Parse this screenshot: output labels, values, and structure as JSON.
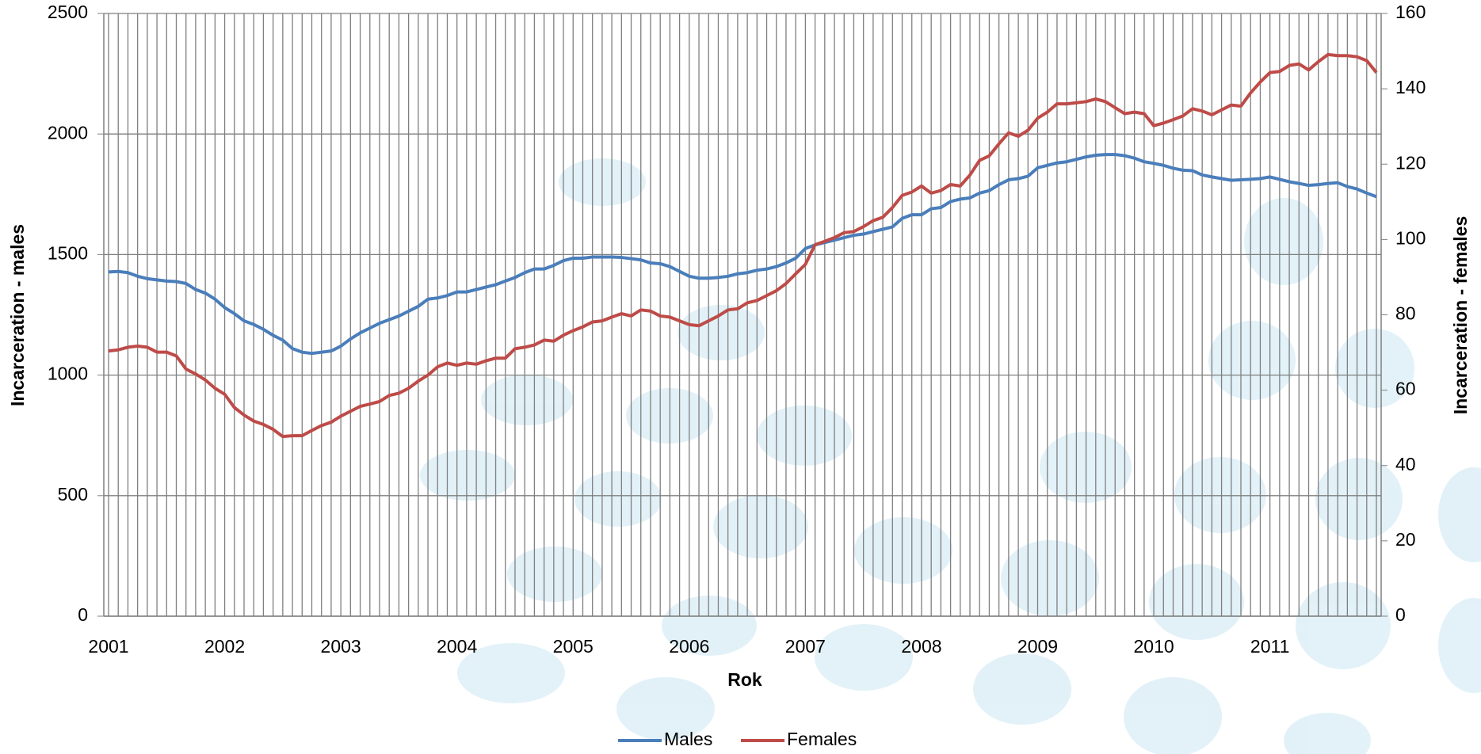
{
  "chart_data": {
    "type": "line",
    "xlabel": "Rok",
    "ylabel": "Incarceration - males",
    "y2label": "Incarceration - females",
    "categories": [
      "2001",
      null,
      null,
      null,
      null,
      null,
      null,
      null,
      null,
      null,
      null,
      null,
      "2002",
      null,
      null,
      null,
      null,
      null,
      null,
      null,
      null,
      null,
      null,
      null,
      "2003",
      null,
      null,
      null,
      null,
      null,
      null,
      null,
      null,
      null,
      null,
      null,
      "2004",
      null,
      null,
      null,
      null,
      null,
      null,
      null,
      null,
      null,
      null,
      null,
      "2005",
      null,
      null,
      null,
      null,
      null,
      null,
      null,
      null,
      null,
      null,
      null,
      "2006",
      null,
      null,
      null,
      null,
      null,
      null,
      null,
      null,
      null,
      null,
      null,
      "2007",
      null,
      null,
      null,
      null,
      null,
      null,
      null,
      null,
      null,
      null,
      null,
      "2008",
      null,
      null,
      null,
      null,
      null,
      null,
      null,
      null,
      null,
      null,
      null,
      "2009",
      null,
      null,
      null,
      null,
      null,
      null,
      null,
      null,
      null,
      null,
      null,
      "2010",
      null,
      null,
      null,
      null,
      null,
      null,
      null,
      null,
      null,
      null,
      null,
      "2011",
      null,
      null,
      null,
      null,
      null,
      null,
      null,
      null,
      null,
      null,
      null
    ],
    "series": [
      {
        "name": "Males",
        "color": "#4a7ebb",
        "axis": "y",
        "values": [
          1428,
          1430,
          1425,
          1410,
          1400,
          1395,
          1390,
          1388,
          1380,
          1355,
          1340,
          1315,
          1280,
          1255,
          1225,
          1210,
          1190,
          1165,
          1145,
          1110,
          1095,
          1090,
          1095,
          1100,
          1120,
          1150,
          1175,
          1195,
          1215,
          1230,
          1245,
          1265,
          1285,
          1315,
          1320,
          1330,
          1345,
          1345,
          1355,
          1365,
          1375,
          1390,
          1405,
          1425,
          1440,
          1440,
          1455,
          1475,
          1485,
          1485,
          1490,
          1490,
          1490,
          1488,
          1483,
          1478,
          1465,
          1462,
          1450,
          1430,
          1410,
          1402,
          1402,
          1405,
          1410,
          1420,
          1425,
          1435,
          1440,
          1450,
          1465,
          1485,
          1525,
          1540,
          1550,
          1560,
          1570,
          1580,
          1585,
          1595,
          1605,
          1615,
          1650,
          1665,
          1665,
          1690,
          1695,
          1720,
          1730,
          1735,
          1755,
          1765,
          1790,
          1810,
          1815,
          1825,
          1860,
          1870,
          1880,
          1885,
          1895,
          1905,
          1912,
          1915,
          1915,
          1910,
          1900,
          1885,
          1878,
          1870,
          1858,
          1850,
          1848,
          1830,
          1822,
          1815,
          1808,
          1810,
          1812,
          1815,
          1822,
          1812,
          1802,
          1795,
          1787,
          1790,
          1795,
          1798,
          1782,
          1772,
          1755,
          1740
        ]
      },
      {
        "name": "Females",
        "color": "#be4b48",
        "axis": "y2",
        "values": [
          70.4,
          70.7,
          71.4,
          71.7,
          71.4,
          70.1,
          70.1,
          69.1,
          65.6,
          64.3,
          62.7,
          60.5,
          58.9,
          55.4,
          53.4,
          51.8,
          50.9,
          49.6,
          47.7,
          47.9,
          47.9,
          49.3,
          50.6,
          51.5,
          53.1,
          54.4,
          55.7,
          56.3,
          57,
          58.6,
          59.2,
          60.5,
          62.4,
          64,
          66.2,
          67.2,
          66.6,
          67.2,
          66.9,
          67.8,
          68.5,
          68.5,
          71,
          71.4,
          72,
          73.3,
          73,
          74.6,
          75.8,
          76.8,
          78.1,
          78.4,
          79.4,
          80.3,
          79.7,
          81.3,
          81,
          79.7,
          79.4,
          78.4,
          77.4,
          77.1,
          78.4,
          79.7,
          81.3,
          81.6,
          83.2,
          83.8,
          85.1,
          86.4,
          88.3,
          90.9,
          93.4,
          98.6,
          99.5,
          100.5,
          101.8,
          102.1,
          103.4,
          105,
          105.9,
          108.5,
          111.7,
          112.6,
          114.2,
          112.3,
          113,
          114.6,
          114.2,
          117.1,
          121,
          122.2,
          125.4,
          128.3,
          127.4,
          129,
          132.2,
          133.8,
          136,
          136,
          136.3,
          136.6,
          137.3,
          136.6,
          135,
          133.4,
          133.8,
          133.4,
          130.2,
          130.9,
          131.8,
          132.8,
          134.7,
          134.1,
          133.1,
          134.4,
          135.7,
          135.4,
          138.9,
          141.8,
          144.3,
          144.6,
          146.2,
          146.6,
          145,
          147.2,
          149.1,
          148.8,
          148.8,
          148.5,
          147.5,
          144.3
        ]
      }
    ],
    "ylim": [
      0,
      2500
    ],
    "yticks": [
      0,
      500,
      1000,
      1500,
      2000,
      2500
    ],
    "y2lim": [
      0,
      160
    ],
    "y2ticks": [
      0,
      20,
      40,
      60,
      80,
      100,
      120,
      140,
      160
    ],
    "grid": true,
    "legend": "bottom"
  }
}
